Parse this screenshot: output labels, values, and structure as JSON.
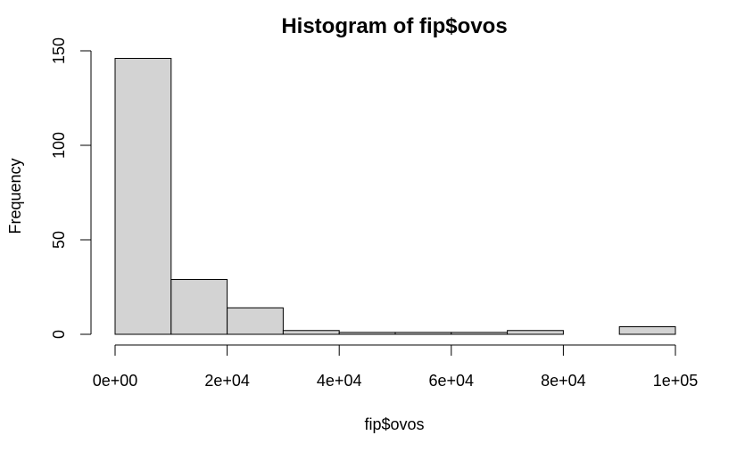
{
  "chart_data": {
    "type": "bar",
    "title": "Histogram of fip$ovos",
    "xlabel": "fip$ovos",
    "ylabel": "Frequency",
    "bins": [
      {
        "start": 0,
        "end": 10000,
        "count": 146
      },
      {
        "start": 10000,
        "end": 20000,
        "count": 29
      },
      {
        "start": 20000,
        "end": 30000,
        "count": 14
      },
      {
        "start": 30000,
        "end": 40000,
        "count": 2
      },
      {
        "start": 40000,
        "end": 50000,
        "count": 1
      },
      {
        "start": 50000,
        "end": 60000,
        "count": 1
      },
      {
        "start": 60000,
        "end": 70000,
        "count": 1
      },
      {
        "start": 70000,
        "end": 80000,
        "count": 2
      },
      {
        "start": 80000,
        "end": 90000,
        "count": 0
      },
      {
        "start": 90000,
        "end": 100000,
        "count": 4
      }
    ],
    "xlim": [
      0,
      100000
    ],
    "ylim": [
      0,
      150
    ],
    "x_ticks": [
      0,
      20000,
      40000,
      60000,
      80000,
      100000
    ],
    "x_tick_labels": [
      "0e+00",
      "2e+04",
      "4e+04",
      "6e+04",
      "8e+04",
      "1e+05"
    ],
    "y_ticks": [
      0,
      50,
      100,
      150
    ],
    "y_tick_labels": [
      "0",
      "50",
      "100",
      "150"
    ],
    "bar_fill": "#d3d3d3",
    "bar_stroke": "#000000",
    "grid": false
  }
}
